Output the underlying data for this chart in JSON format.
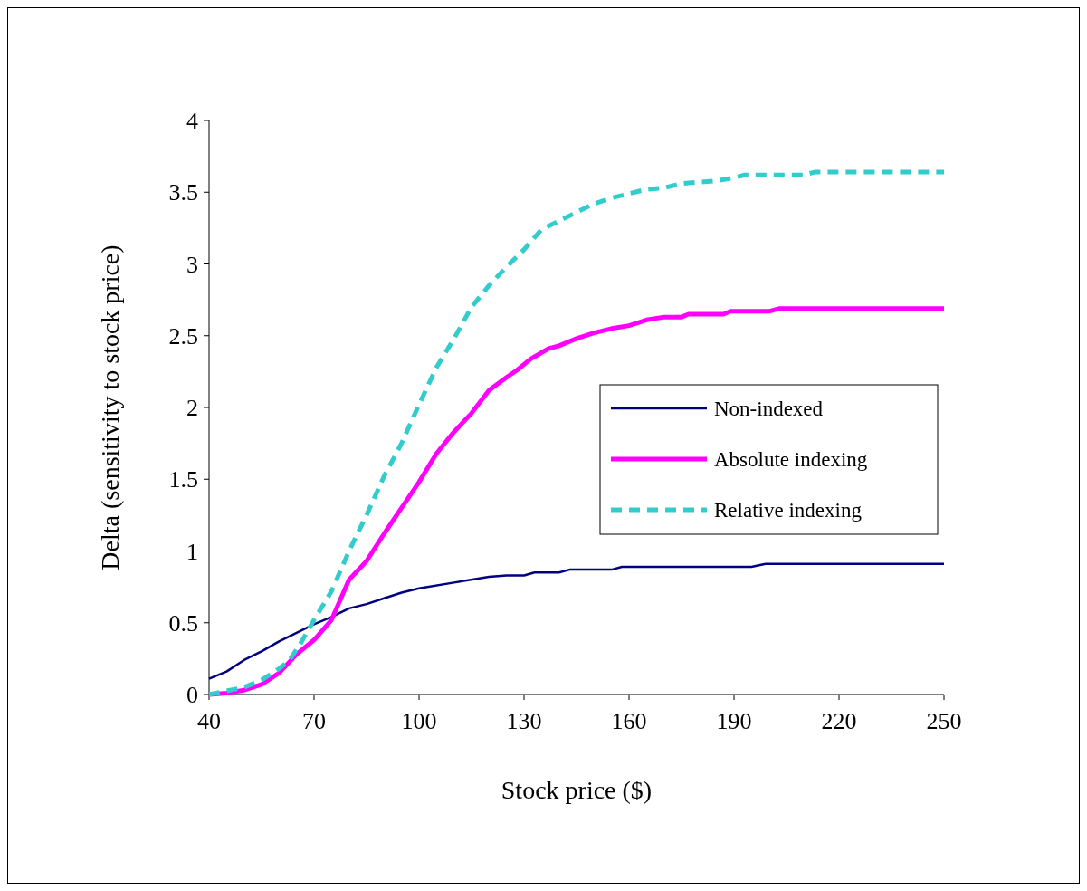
{
  "chart_data": {
    "type": "line",
    "xlabel": "Stock price ($)",
    "ylabel": "Delta (sensitivity to stock price)",
    "xlim": [
      40,
      250
    ],
    "xticks": [
      40,
      70,
      100,
      130,
      160,
      190,
      220,
      250
    ],
    "ylim": [
      0,
      4
    ],
    "yticks": [
      0,
      0.5,
      1,
      1.5,
      2,
      2.5,
      3,
      3.5,
      4
    ],
    "grid": false,
    "legend": "right",
    "marker": "none",
    "series": [
      {
        "name": "Non-indexed",
        "color": "#000080",
        "line_style": "solid",
        "x": [
          40,
          45,
          50,
          55,
          60,
          65,
          70,
          75,
          80,
          85,
          90,
          95,
          100,
          110,
          120,
          125,
          130,
          133,
          140,
          143,
          155,
          158,
          195,
          199,
          250
        ],
        "values": [
          0.11,
          0.16,
          0.24,
          0.3,
          0.37,
          0.43,
          0.49,
          0.54,
          0.6,
          0.63,
          0.67,
          0.71,
          0.74,
          0.78,
          0.82,
          0.83,
          0.83,
          0.85,
          0.85,
          0.87,
          0.87,
          0.89,
          0.89,
          0.91,
          0.91
        ]
      },
      {
        "name": "Absolute indexing",
        "color": "#ff00ff",
        "line_style": "solid",
        "x": [
          40,
          45,
          50,
          55,
          60,
          65,
          70,
          75,
          80,
          85,
          90,
          95,
          100,
          105,
          110,
          115,
          120,
          125,
          128,
          132,
          137,
          140,
          145,
          150,
          155,
          160,
          165,
          170,
          175,
          177,
          187,
          189,
          200,
          203,
          250
        ],
        "values": [
          0,
          0.01,
          0.03,
          0.07,
          0.15,
          0.28,
          0.38,
          0.52,
          0.8,
          0.93,
          1.12,
          1.3,
          1.48,
          1.68,
          1.83,
          1.96,
          2.12,
          2.21,
          2.26,
          2.34,
          2.41,
          2.43,
          2.48,
          2.52,
          2.55,
          2.57,
          2.61,
          2.63,
          2.63,
          2.65,
          2.65,
          2.67,
          2.67,
          2.69,
          2.69
        ]
      },
      {
        "name": "Relative indexing",
        "color": "#33cccc",
        "line_style": "dashed",
        "x": [
          40,
          50,
          55,
          60,
          63,
          66,
          70,
          75,
          80,
          85,
          90,
          95,
          100,
          105,
          110,
          115,
          120,
          125,
          130,
          135,
          140,
          145,
          150,
          155,
          160,
          165,
          170,
          175,
          185,
          190,
          193,
          210,
          213,
          250
        ],
        "values": [
          0,
          0.05,
          0.1,
          0.18,
          0.24,
          0.35,
          0.52,
          0.72,
          1,
          1.25,
          1.52,
          1.75,
          2.02,
          2.28,
          2.48,
          2.7,
          2.85,
          2.98,
          3.1,
          3.24,
          3.3,
          3.36,
          3.42,
          3.46,
          3.49,
          3.52,
          3.53,
          3.56,
          3.58,
          3.6,
          3.62,
          3.62,
          3.64,
          3.64
        ]
      }
    ]
  }
}
